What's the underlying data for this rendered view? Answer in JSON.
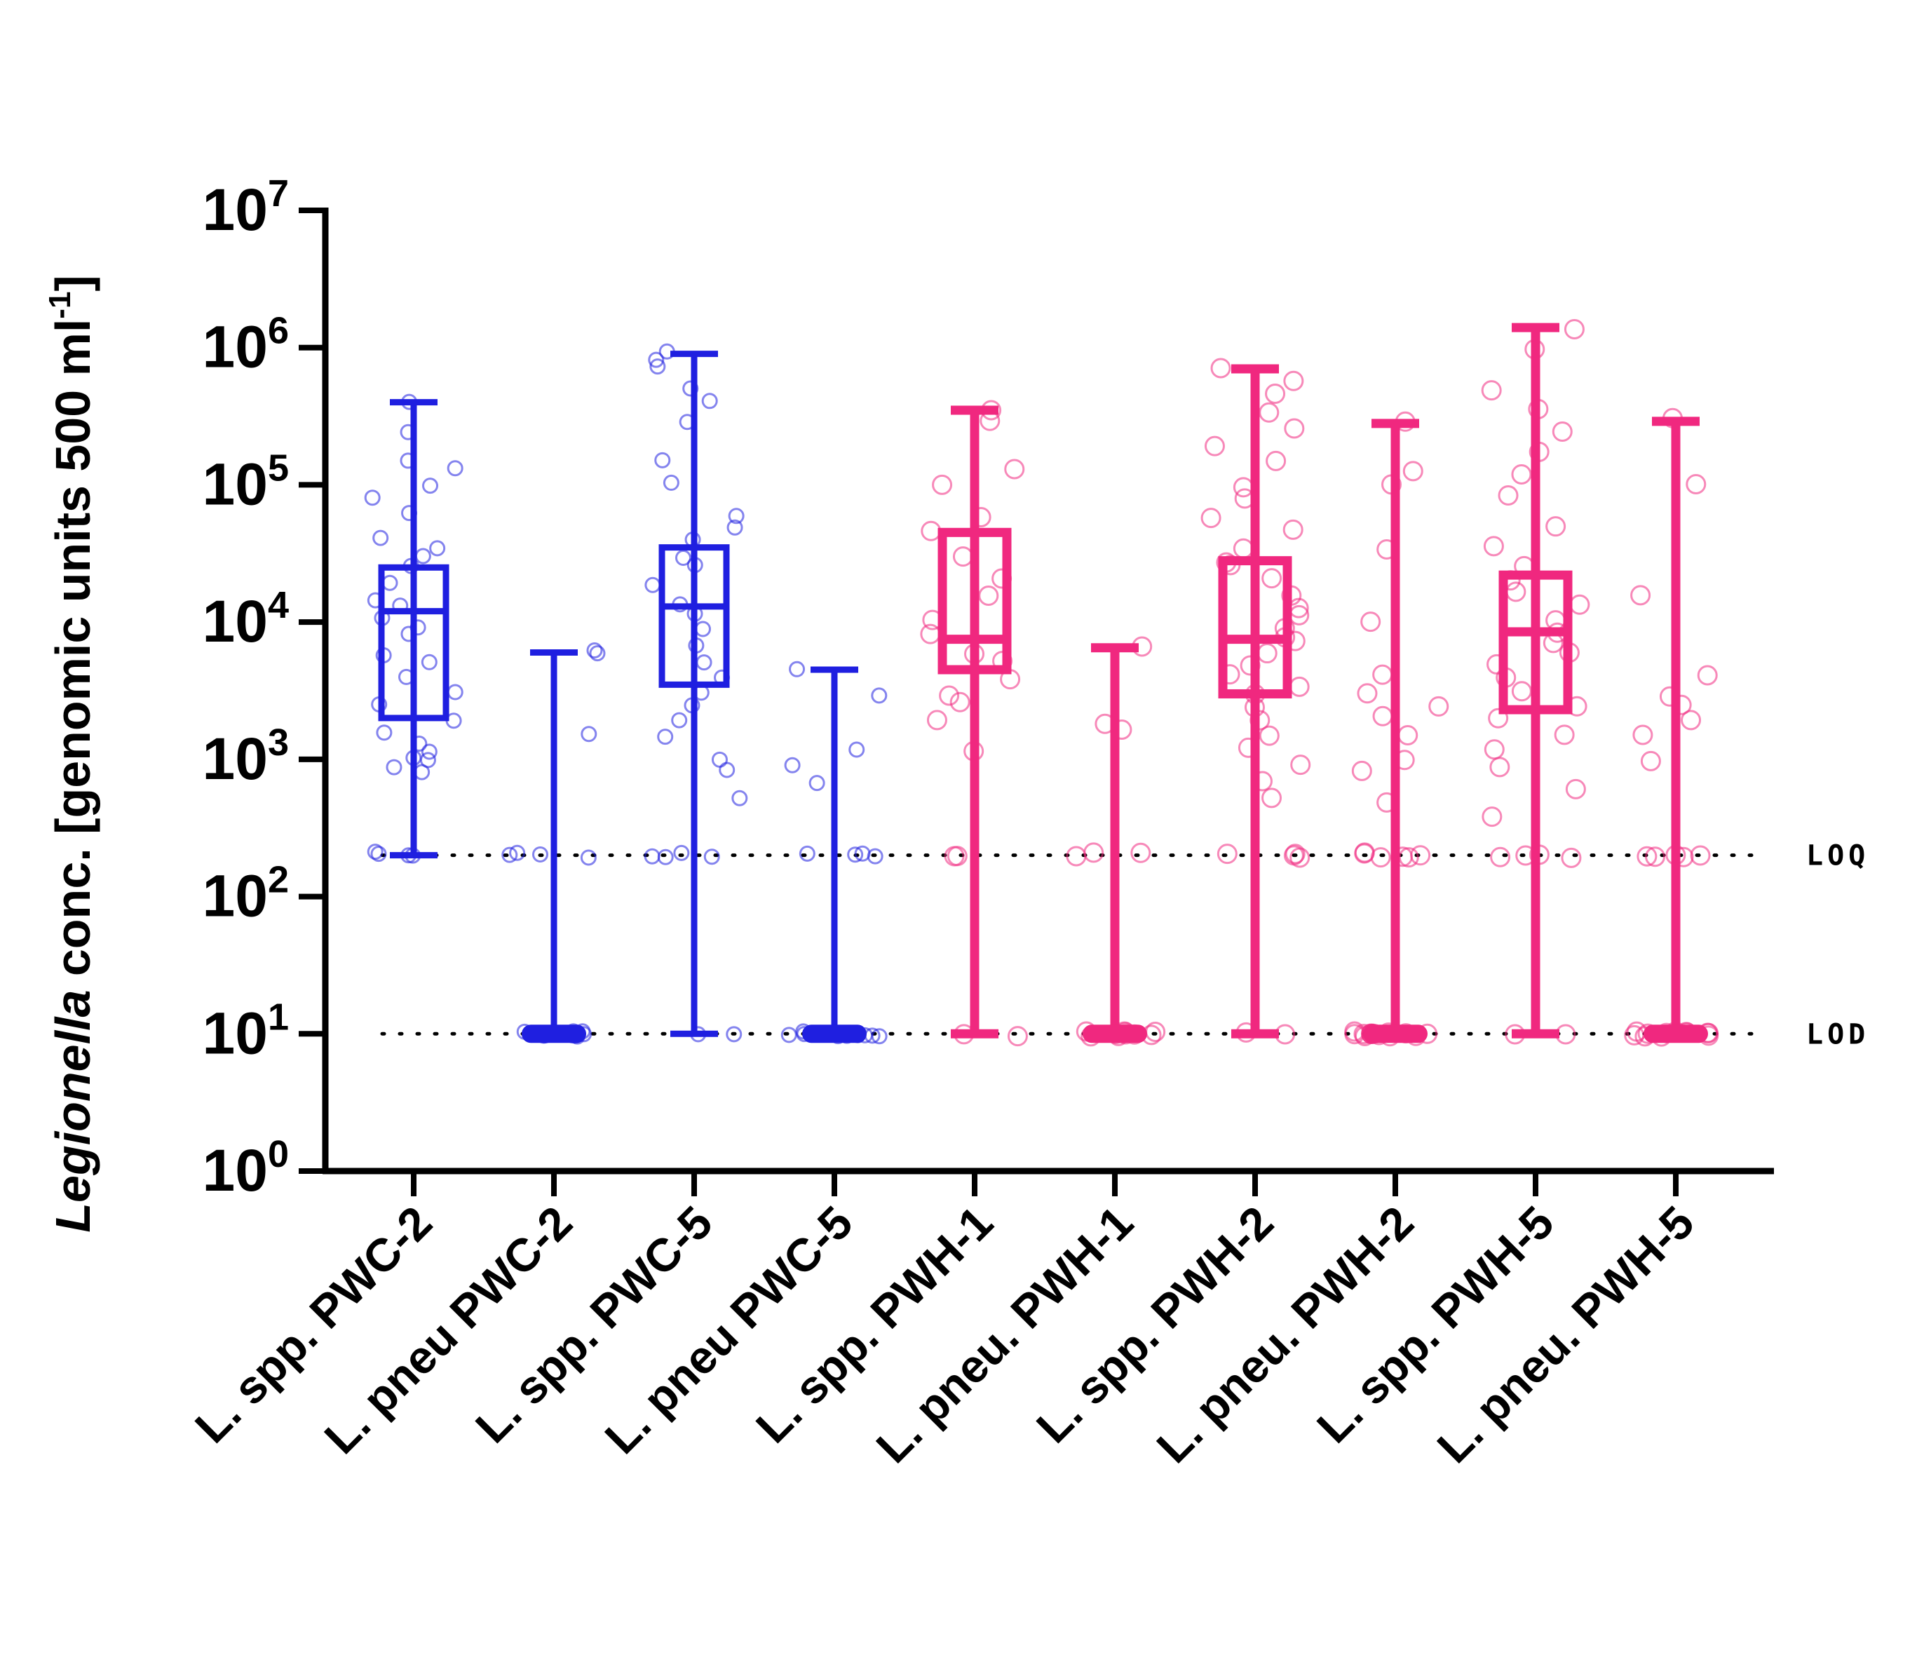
{
  "chart_data": {
    "type": "box",
    "ylabel_italic": "Legionella",
    "ylabel_rest": " conc. [genomic units 500 ml",
    "ylabel_sup": "-1",
    "ylabel_end": "]",
    "xlabel": "",
    "y_scale": "log",
    "ylim": [
      1,
      10000000
    ],
    "y_ticks": [
      {
        "base": "10",
        "exp": "0",
        "value": 1
      },
      {
        "base": "10",
        "exp": "1",
        "value": 10
      },
      {
        "base": "10",
        "exp": "2",
        "value": 100
      },
      {
        "base": "10",
        "exp": "3",
        "value": 1000
      },
      {
        "base": "10",
        "exp": "4",
        "value": 10000
      },
      {
        "base": "10",
        "exp": "5",
        "value": 100000
      },
      {
        "base": "10",
        "exp": "6",
        "value": 1000000
      },
      {
        "base": "10",
        "exp": "7",
        "value": 10000000
      }
    ],
    "reference_lines": [
      {
        "label": "LOQ",
        "value": 200
      },
      {
        "label": "LOD",
        "value": 10
      }
    ],
    "colors": {
      "PWC": "#1f1fe0",
      "PWH": "#f0287f",
      "axis": "#000000"
    },
    "categories": [
      "L. spp. PWC-2",
      "L. pneu PWC-2",
      "L. spp. PWC-5",
      "L. pneu PWC-5",
      "L. spp. PWH-1",
      "L. pneu. PWH-1",
      "L. spp. PWH-2",
      "L. pneu. PWH-2",
      "L. spp. PWH-5",
      "L. pneu. PWH-5"
    ],
    "boxes": [
      {
        "category": "L. spp. PWC-2",
        "group": "PWC",
        "min": 200,
        "q1": 2000,
        "median": 12000,
        "q3": 25000,
        "max": 400000,
        "points": [
          200,
          200,
          200,
          220,
          800,
          900,
          950,
          1000,
          1100,
          1300,
          1500,
          2000,
          2500,
          3000,
          4000,
          5000,
          6000,
          8000,
          9000,
          11000,
          13000,
          15000,
          20000,
          25000,
          30000,
          35000,
          40000,
          60000,
          80000,
          100000,
          130000,
          150000,
          250000,
          400000
        ]
      },
      {
        "category": "L. pneu PWC-2",
        "group": "PWC",
        "min": 10,
        "q1": 10,
        "median": 10,
        "q3": 10,
        "max": 6000,
        "points": [
          10,
          10,
          10,
          10,
          10,
          10,
          10,
          10,
          10,
          10,
          10,
          10,
          200,
          200,
          200,
          200,
          1500,
          6000,
          6000
        ]
      },
      {
        "category": "L. spp. PWC-5",
        "group": "PWC",
        "min": 10,
        "q1": 3500,
        "median": 13000,
        "q3": 35000,
        "max": 900000,
        "points": [
          10,
          10,
          200,
          200,
          200,
          200,
          500,
          800,
          1000,
          1500,
          2000,
          2500,
          3000,
          4000,
          5000,
          7000,
          9000,
          11000,
          14000,
          18000,
          25000,
          30000,
          40000,
          50000,
          60000,
          100000,
          150000,
          300000,
          400000,
          500000,
          700000,
          800000,
          900000
        ]
      },
      {
        "category": "L. pneu PWC-5",
        "group": "PWC",
        "min": 10,
        "q1": 10,
        "median": 10,
        "q3": 10,
        "max": 4500,
        "points": [
          10,
          10,
          10,
          10,
          10,
          10,
          10,
          10,
          10,
          10,
          10,
          10,
          200,
          200,
          200,
          200,
          700,
          900,
          1200,
          3000,
          4500
        ]
      },
      {
        "category": "L. spp. PWH-1",
        "group": "PWH",
        "min": 10,
        "q1": 4500,
        "median": 7500,
        "q3": 45000,
        "max": 350000,
        "points": [
          10,
          10,
          200,
          200,
          1200,
          2000,
          2500,
          3000,
          4000,
          5000,
          6000,
          8000,
          10000,
          15000,
          20000,
          30000,
          45000,
          60000,
          100000,
          130000,
          300000,
          350000
        ]
      },
      {
        "category": "L. pneu. PWH-1",
        "group": "PWH",
        "min": 10,
        "q1": 10,
        "median": 10,
        "q3": 10,
        "max": 6500,
        "points": [
          10,
          10,
          10,
          10,
          10,
          10,
          10,
          10,
          10,
          10,
          200,
          200,
          200,
          1700,
          1900,
          6500
        ]
      },
      {
        "category": "L. spp. PWH-2",
        "group": "PWH",
        "min": 10,
        "q1": 3000,
        "median": 7500,
        "q3": 28000,
        "max": 700000,
        "points": [
          10,
          10,
          200,
          200,
          200,
          200,
          500,
          700,
          900,
          1200,
          1500,
          2000,
          2500,
          3000,
          3500,
          4000,
          5000,
          6000,
          7000,
          8000,
          9000,
          11000,
          13000,
          16000,
          20000,
          25000,
          28000,
          35000,
          45000,
          60000,
          80000,
          100000,
          150000,
          200000,
          250000,
          350000,
          450000,
          550000,
          700000
        ]
      },
      {
        "category": "L. pneu. PWH-2",
        "group": "PWH",
        "min": 10,
        "q1": 10,
        "median": 10,
        "q3": 10,
        "max": 280000,
        "points": [
          10,
          10,
          10,
          10,
          10,
          10,
          10,
          10,
          10,
          10,
          10,
          10,
          10,
          10,
          200,
          200,
          200,
          200,
          200,
          200,
          500,
          800,
          1000,
          1500,
          2000,
          2500,
          3000,
          4000,
          10000,
          35000,
          100000,
          130000,
          280000
        ]
      },
      {
        "category": "L. spp. PWH-5",
        "group": "PWH",
        "min": 10,
        "q1": 2300,
        "median": 8500,
        "q3": 22000,
        "max": 1400000,
        "points": [
          10,
          10,
          200,
          200,
          200,
          200,
          400,
          600,
          900,
          1200,
          1500,
          2000,
          2500,
          3000,
          4000,
          5000,
          6000,
          7000,
          8500,
          10000,
          13000,
          16000,
          20000,
          25000,
          35000,
          50000,
          80000,
          120000,
          180000,
          250000,
          350000,
          500000,
          1000000,
          1400000
        ]
      },
      {
        "category": "L. pneu. PWH-5",
        "group": "PWH",
        "min": 10,
        "q1": 10,
        "median": 10,
        "q3": 10,
        "max": 290000,
        "points": [
          10,
          10,
          10,
          10,
          10,
          10,
          10,
          10,
          10,
          10,
          10,
          10,
          200,
          200,
          200,
          200,
          200,
          1000,
          1500,
          2000,
          2500,
          3000,
          4000,
          15000,
          100000,
          300000
        ]
      }
    ]
  }
}
